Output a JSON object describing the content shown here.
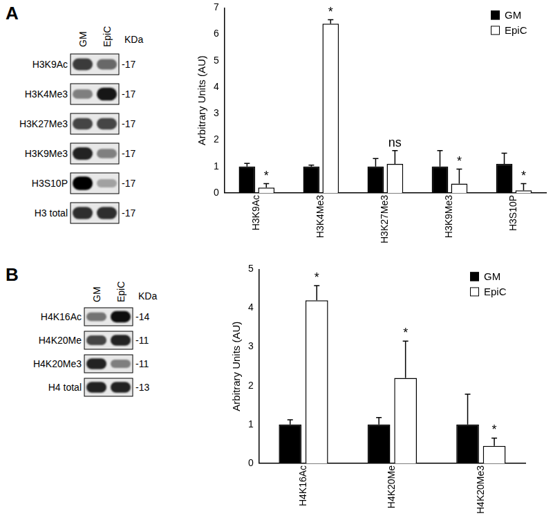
{
  "panels": [
    {
      "label": "A",
      "blot": {
        "lanes": [
          "GM",
          "EpiC"
        ],
        "unit": "KDa",
        "rows": [
          {
            "label": "H3K9Ac",
            "kda": "-17",
            "bands": [
              0.75,
              0.55
            ]
          },
          {
            "label": "H3K4Me3",
            "kda": "-17",
            "bands": [
              0.45,
              0.9
            ]
          },
          {
            "label": "H3K27Me3",
            "kda": "-17",
            "bands": [
              0.7,
              0.7
            ]
          },
          {
            "label": "H3K9Me3",
            "kda": "-17",
            "bands": [
              0.85,
              0.45
            ]
          },
          {
            "label": "H3S10P",
            "kda": "-17",
            "bands": [
              1.0,
              0.3
            ]
          },
          {
            "label": "H3 total",
            "kda": "-17",
            "bands": [
              0.8,
              0.8
            ]
          }
        ]
      }
    },
    {
      "label": "B",
      "blot": {
        "lanes": [
          "GM",
          "EpiC"
        ],
        "unit": "KDa",
        "rows": [
          {
            "label": "H4K16Ac",
            "kda": "-14",
            "bands": [
              0.5,
              0.95
            ]
          },
          {
            "label": "H4K20Me",
            "kda": "-11",
            "bands": [
              0.7,
              0.85
            ]
          },
          {
            "label": "H4K20Me3",
            "kda": "-11",
            "bands": [
              0.85,
              0.45
            ]
          },
          {
            "label": "H4 total",
            "kda": "-13",
            "bands": [
              0.85,
              0.85
            ]
          }
        ]
      }
    }
  ],
  "chart_data": [
    {
      "type": "bar",
      "y_label": "Arbitrary Units (AU)",
      "categories": [
        "H3K9Ac",
        "H3K4Me3",
        "H3K27Me3",
        "H3K9Me3",
        "H3S10P"
      ],
      "series": [
        {
          "name": "GM",
          "color": "#000000",
          "values": [
            1.0,
            1.0,
            1.0,
            1.0,
            1.1
          ],
          "errors": [
            0.12,
            0.05,
            0.3,
            0.6,
            0.4
          ]
        },
        {
          "name": "EpiC",
          "color": "#ffffff",
          "values": [
            0.2,
            6.4,
            1.1,
            0.35,
            0.1
          ],
          "errors": [
            0.15,
            0.15,
            0.5,
            0.55,
            0.25
          ],
          "annotations": [
            "*",
            "*",
            "ns",
            "*",
            "*"
          ]
        }
      ],
      "ylim": [
        0,
        7
      ],
      "yticks": [
        0,
        1,
        2,
        3,
        4,
        5,
        6,
        7
      ],
      "grid": false,
      "legend": "top-right"
    },
    {
      "type": "bar",
      "y_label": "Arbitrary Units (AU)",
      "categories": [
        "H4K16Ac",
        "H4K20Me",
        "H4K20Me3"
      ],
      "series": [
        {
          "name": "GM",
          "color": "#000000",
          "values": [
            1.0,
            1.0,
            1.0
          ],
          "errors": [
            0.12,
            0.18,
            0.78
          ]
        },
        {
          "name": "EpiC",
          "color": "#ffffff",
          "values": [
            4.2,
            2.2,
            0.45
          ],
          "errors": [
            0.38,
            0.95,
            0.2
          ],
          "annotations": [
            "*",
            "*",
            "*"
          ]
        }
      ],
      "ylim": [
        0,
        5
      ],
      "yticks": [
        0,
        1,
        2,
        3,
        4,
        5
      ],
      "grid": false,
      "legend": "top-right"
    }
  ]
}
